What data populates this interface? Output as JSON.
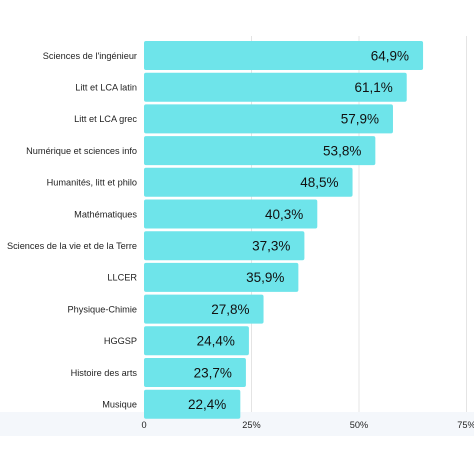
{
  "chart_data": {
    "type": "bar",
    "orientation": "horizontal",
    "categories": [
      "Sciences de l'ingénieur",
      "Litt et LCA latin",
      "Litt et LCA grec",
      "Numérique et sciences info",
      "Humanités, litt et philo",
      "Mathématiques",
      "Sciences de la vie et de la Terre",
      "LLCER",
      "Physique-Chimie",
      "HGGSP",
      "Histoire des arts",
      "Musique"
    ],
    "values": [
      64.9,
      61.1,
      57.9,
      53.8,
      48.5,
      40.3,
      37.3,
      35.9,
      27.8,
      24.4,
      23.7,
      22.4
    ],
    "value_labels": [
      "64,9%",
      "61,1%",
      "57,9%",
      "53,8%",
      "48,5%",
      "40,3%",
      "37,3%",
      "35,9%",
      "27,8%",
      "24,4%",
      "23,7%",
      "22,4%"
    ],
    "x_ticks": [
      0,
      25,
      50,
      75
    ],
    "x_tick_labels": [
      "0",
      "25%",
      "50%",
      "75%"
    ],
    "xlim": [
      0,
      75
    ],
    "grid": true,
    "title": "",
    "xlabel": "",
    "ylabel": "",
    "colors": {
      "bar": "#6ee4ea",
      "gridline": "#e4e4e4",
      "axis_band": "#f4f7fb"
    }
  }
}
